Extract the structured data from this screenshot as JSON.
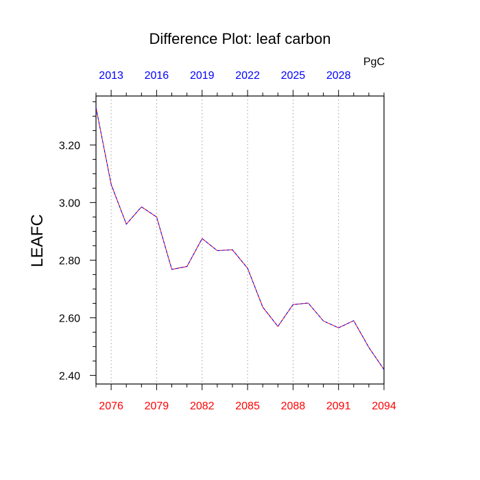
{
  "chart_data": {
    "type": "line",
    "title": "Difference Plot: leaf carbon",
    "ylabel": "LEAFC",
    "unit_label": "PgC",
    "ylim": [
      2.37,
      3.37
    ],
    "bottom_axis": {
      "xlim": [
        2075,
        2094
      ],
      "ticks": [
        2076,
        2079,
        2082,
        2085,
        2088,
        2091,
        2094
      ],
      "tick_labels": [
        "2076",
        "2079",
        "2082",
        "2085",
        "2088",
        "2091",
        "2094"
      ],
      "color": "#ff0000"
    },
    "top_axis": {
      "xlim": [
        2012,
        2031
      ],
      "ticks": [
        2013,
        2016,
        2019,
        2022,
        2025,
        2028
      ],
      "tick_labels": [
        "2013",
        "2016",
        "2019",
        "2022",
        "2025",
        "2028"
      ],
      "color": "#0000ff"
    },
    "yticks": [
      2.4,
      2.6,
      2.8,
      3.0,
      3.2
    ],
    "ytick_labels": [
      "2.40",
      "2.60",
      "2.80",
      "3.00",
      "3.20"
    ],
    "grid": "vertical dotted at bottom-axis ticks",
    "series": [
      {
        "line_colors": [
          "#ff0000",
          "#0000ff"
        ],
        "line_style": "dashed",
        "x": [
          2075,
          2076,
          2077,
          2078,
          2079,
          2080,
          2081,
          2082,
          2083,
          2084,
          2085,
          2086,
          2087,
          2088,
          2089,
          2090,
          2091,
          2092,
          2093,
          2094
        ],
        "y": [
          3.33,
          3.063,
          2.925,
          2.985,
          2.95,
          2.768,
          2.778,
          2.875,
          2.833,
          2.836,
          2.772,
          2.637,
          2.57,
          2.646,
          2.651,
          2.589,
          2.565,
          2.59,
          2.497,
          2.42
        ]
      }
    ]
  }
}
